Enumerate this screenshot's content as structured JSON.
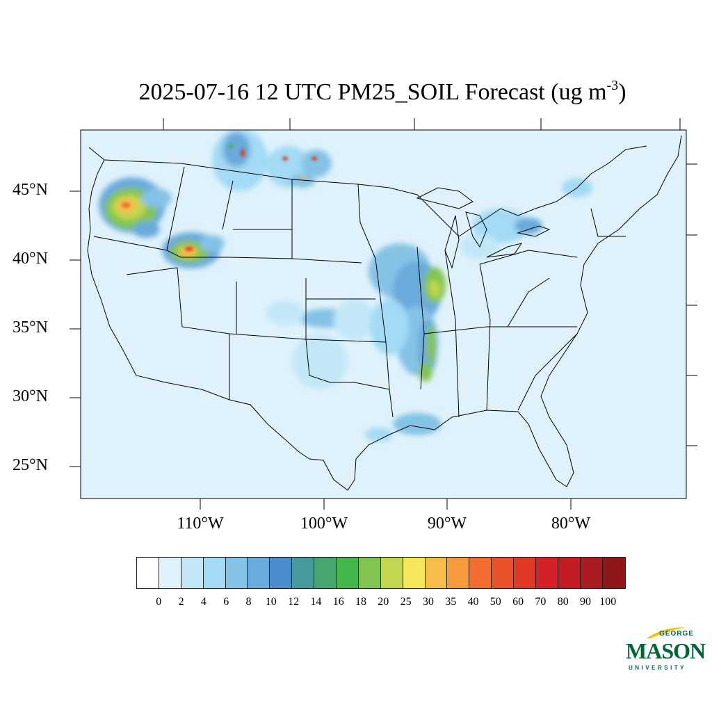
{
  "title": {
    "main": "2025-07-16 12 UTC PM25_SOIL Forecast (ug m",
    "sup": "-3",
    "close": ")"
  },
  "latitude_labels": [
    "45°N",
    "40°N",
    "35°N",
    "30°N",
    "25°N"
  ],
  "longitude_labels": [
    "110°W",
    "100°W",
    "90°W",
    "80°W"
  ],
  "colorbar": {
    "levels": [
      "0",
      "2",
      "4",
      "6",
      "8",
      "10",
      "12",
      "14",
      "16",
      "18",
      "20",
      "25",
      "30",
      "35",
      "40",
      "50",
      "60",
      "70",
      "80",
      "90",
      "100"
    ],
    "colors": [
      "#ffffff",
      "#e0f3fc",
      "#c2e8f8",
      "#a3daf5",
      "#84c2e6",
      "#6aaadc",
      "#4b8ccc",
      "#479a9b",
      "#47a670",
      "#45b64a",
      "#82c450",
      "#c3d64f",
      "#f6e65a",
      "#f6bd4a",
      "#f69a3e",
      "#f36c30",
      "#e95229",
      "#e03a25",
      "#d42028",
      "#c31c25",
      "#ab1c22",
      "#8e1518"
    ]
  },
  "logo": {
    "top": "GEORGE",
    "main": "MASON",
    "bottom": "UNIVERSITY",
    "color": "#006633",
    "accent": "#f2c200"
  },
  "map": {
    "ocean_color": "#dff2fb",
    "land_base": "#dff2fb",
    "border_color": "#000000"
  }
}
